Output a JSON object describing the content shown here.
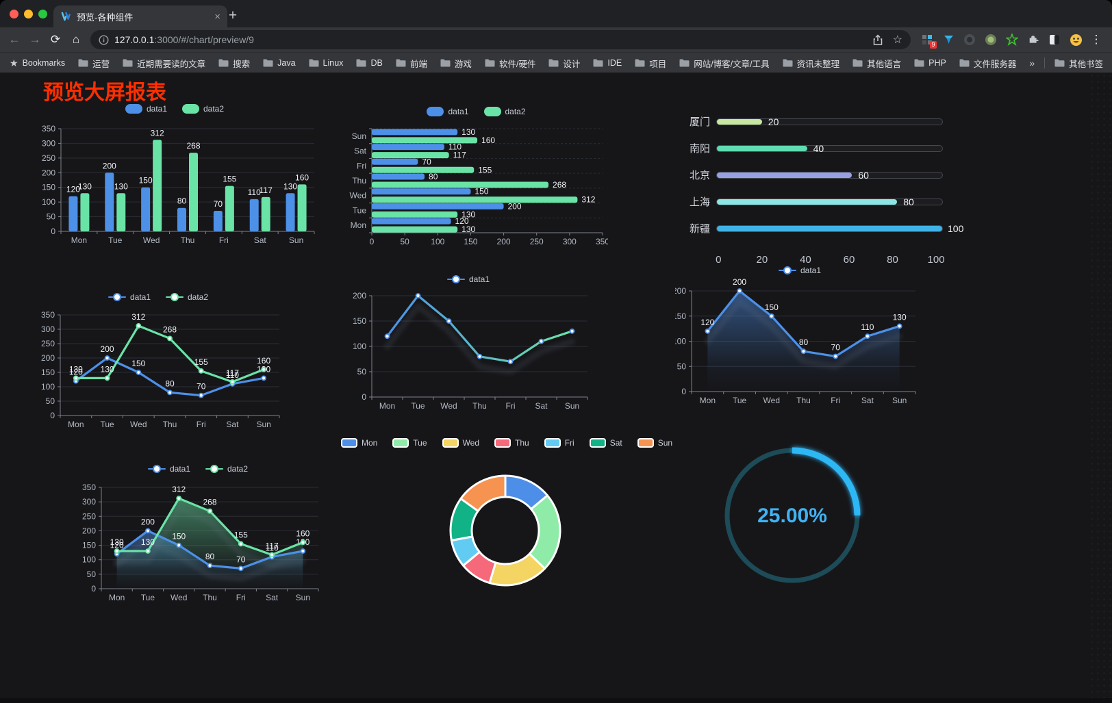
{
  "browser": {
    "traffic_lights": [
      "#ff5f57",
      "#febc2e",
      "#28c840"
    ],
    "tab": {
      "title": "预览-各种组件"
    },
    "icons": {
      "close": "×",
      "new_tab": "+",
      "back": "←",
      "forward": "→",
      "reload": "⟳",
      "home": "⌂",
      "menu": "⋮",
      "page_star": "☆",
      "bookmarks_star": "★",
      "overflow": "»"
    },
    "url": {
      "host": "127.0.0.1",
      "rest": ":3000/#/chart/preview/9"
    },
    "extension_badge": "9",
    "bookmarks_bar": {
      "star_label": "Bookmarks",
      "items": [
        "运营",
        "近期需要读的文章",
        "搜索",
        "Java",
        "Linux",
        "DB",
        "前端",
        "游戏",
        "软件/硬件",
        "设计",
        "IDE",
        "项目",
        "网站/博客/文章/工具",
        "资讯未整理",
        "其他语言",
        "PHP",
        "文件服务器"
      ],
      "other": "其他书签"
    }
  },
  "page": {
    "title": "预览大屏报表",
    "title_color": "#ff2f00"
  },
  "chart_data": [
    {
      "id": "bar-vertical",
      "type": "bar",
      "categories": [
        "Mon",
        "Tue",
        "Wed",
        "Thu",
        "Fri",
        "Sat",
        "Sun"
      ],
      "series": [
        {
          "name": "data1",
          "color": "#4d90e8",
          "values": [
            120,
            200,
            150,
            80,
            70,
            110,
            130
          ]
        },
        {
          "name": "data2",
          "color": "#6ae3a6",
          "values": [
            130,
            130,
            312,
            268,
            155,
            117,
            160
          ]
        }
      ],
      "ylim": [
        0,
        350
      ],
      "ystep": 50,
      "grid": true,
      "legend_position": "top"
    },
    {
      "id": "bar-horizontal",
      "type": "bar-horizontal",
      "categories": [
        "Mon",
        "Tue",
        "Wed",
        "Thu",
        "Fri",
        "Sat",
        "Sun"
      ],
      "series": [
        {
          "name": "data1",
          "color": "#4d90e8",
          "values": [
            120,
            200,
            150,
            80,
            70,
            110,
            130
          ]
        },
        {
          "name": "data2",
          "color": "#6ae3a6",
          "values": [
            130,
            130,
            312,
            268,
            155,
            117,
            160
          ]
        }
      ],
      "xlim": [
        0,
        350
      ],
      "xstep": 50,
      "legend_position": "top"
    },
    {
      "id": "progress-list",
      "type": "bar",
      "subtype": "progress-list",
      "max": 100,
      "axis_ticks": [
        0,
        20,
        40,
        60,
        80,
        100
      ],
      "items": [
        {
          "label": "厦门",
          "value": 20,
          "color": "#c5e79f"
        },
        {
          "label": "南阳",
          "value": 40,
          "color": "#5fdcb1"
        },
        {
          "label": "北京",
          "value": 60,
          "color": "#98a0e4"
        },
        {
          "label": "上海",
          "value": 80,
          "color": "#8ce6e3"
        },
        {
          "label": "新疆",
          "value": 100,
          "color": "#41b2e6"
        }
      ]
    },
    {
      "id": "line-two",
      "type": "line",
      "categories": [
        "Mon",
        "Tue",
        "Wed",
        "Thu",
        "Fri",
        "Sat",
        "Sun"
      ],
      "series": [
        {
          "name": "data1",
          "color": "#4d90e8",
          "values": [
            120,
            200,
            150,
            80,
            70,
            110,
            130
          ]
        },
        {
          "name": "data2",
          "color": "#6ae3a6",
          "values": [
            130,
            130,
            312,
            268,
            155,
            117,
            160
          ]
        }
      ],
      "ylim": [
        0,
        350
      ],
      "ystep": 50,
      "labels": true,
      "legend_position": "top"
    },
    {
      "id": "line-gradient",
      "type": "line",
      "categories": [
        "Mon",
        "Tue",
        "Wed",
        "Thu",
        "Fri",
        "Sat",
        "Sun"
      ],
      "series": [
        {
          "name": "data1",
          "color": "#4d90e8",
          "values": [
            120,
            200,
            150,
            80,
            70,
            110,
            130
          ]
        }
      ],
      "stroke_gradient": [
        "#4d90e8",
        "#6ae3a6"
      ],
      "ylim": [
        0,
        200
      ],
      "ystep": 50,
      "labels": false,
      "shadow": true,
      "legend_position": "top"
    },
    {
      "id": "area-single",
      "type": "area",
      "categories": [
        "Mon",
        "Tue",
        "Wed",
        "Thu",
        "Fri",
        "Sat",
        "Sun"
      ],
      "series": [
        {
          "name": "data1",
          "color": "#4d90e8",
          "values": [
            120,
            200,
            150,
            80,
            70,
            110,
            130
          ]
        }
      ],
      "ylim": [
        0,
        200
      ],
      "ystep": 50,
      "labels": true,
      "shadow": true,
      "legend_position": "top"
    },
    {
      "id": "area-two",
      "type": "area",
      "categories": [
        "Mon",
        "Tue",
        "Wed",
        "Thu",
        "Fri",
        "Sat",
        "Sun"
      ],
      "series": [
        {
          "name": "data1",
          "color": "#4d90e8",
          "values": [
            120,
            200,
            150,
            80,
            70,
            110,
            130
          ]
        },
        {
          "name": "data2",
          "color": "#6ae3a6",
          "values": [
            130,
            130,
            312,
            268,
            155,
            117,
            160
          ]
        }
      ],
      "ylim": [
        0,
        350
      ],
      "ystep": 50,
      "labels": true,
      "shadow": true,
      "legend_position": "top"
    },
    {
      "id": "donut",
      "type": "pie",
      "categories": [
        "Mon",
        "Tue",
        "Wed",
        "Thu",
        "Fri",
        "Sat",
        "Sun"
      ],
      "values": [
        120,
        200,
        150,
        80,
        70,
        110,
        130
      ],
      "colors": [
        "#4d8fe8",
        "#8feca8",
        "#f4d463",
        "#f5697b",
        "#62cbf2",
        "#10b286",
        "#f69350"
      ],
      "border_color": "#ffffff",
      "legend_position": "top"
    },
    {
      "id": "gauge",
      "type": "gauge",
      "percent": 25,
      "value_label": "25.00%",
      "color": "#2eb7f5",
      "track_color": "#1d4b58"
    }
  ]
}
